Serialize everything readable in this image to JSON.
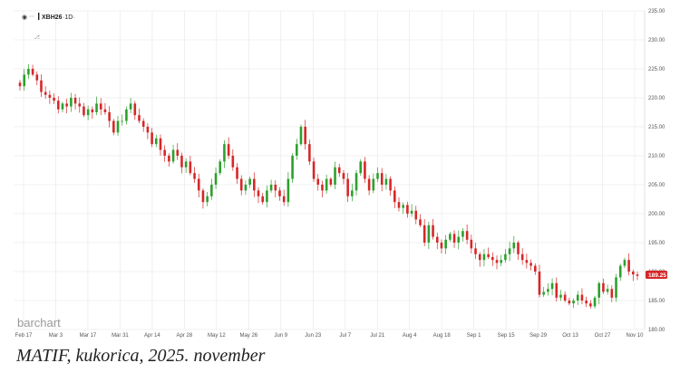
{
  "header": {
    "symbol": "XBH26",
    "interval": "1D"
  },
  "watermark": "barchart",
  "caption": "MATIF, kukorica, 2025. november",
  "colors": {
    "up": "#2ca02c",
    "down": "#d62728",
    "grid": "#e6e6e6",
    "last_price_bg": "#d62728"
  },
  "chart_data": {
    "type": "candlestick",
    "title": "",
    "xlabel": "",
    "ylabel": "",
    "ylim": [
      180,
      235
    ],
    "yticks": [
      180,
      185,
      190,
      195,
      200,
      205,
      210,
      215,
      220,
      225,
      230,
      235
    ],
    "ytick_labels": [
      "180.00",
      "185.00",
      "190.00",
      "195.00",
      "200.00",
      "205.00",
      "210.00",
      "215.00",
      "220.00",
      "225.00",
      "230.00",
      "235.00"
    ],
    "xtick_labels": [
      "Feb 17",
      "Mar 3",
      "Mar 17",
      "Mar 31",
      "Apr 14",
      "Apr 28",
      "May 12",
      "May 26",
      "Jun 9",
      "Jun 23",
      "Jul 7",
      "Jul 21",
      "Aug 4",
      "Aug 18",
      "Sep 1",
      "Sep 15",
      "Sep 29",
      "Oct 13",
      "Oct 27",
      "Nov 10"
    ],
    "last_price": "189.25",
    "grid": true,
    "closes": [
      222.0,
      224.0,
      225.0,
      224.0,
      223.0,
      221.0,
      220.5,
      220.0,
      219.5,
      218.0,
      219.0,
      218.5,
      220.0,
      219.0,
      218.5,
      217.0,
      218.0,
      217.5,
      219.0,
      218.0,
      217.5,
      216.0,
      214.0,
      216.0,
      216.0,
      218.0,
      219.0,
      217.0,
      216.0,
      215.0,
      214.0,
      212.0,
      213.0,
      211.0,
      210.0,
      209.0,
      211.0,
      210.0,
      208.0,
      209.0,
      207.0,
      206.0,
      204.0,
      202.0,
      203.0,
      205.0,
      207.0,
      209.0,
      212.0,
      210.0,
      208.0,
      206.0,
      204.0,
      205.0,
      206.0,
      204.0,
      203.0,
      202.0,
      204.0,
      205.0,
      204.0,
      203.0,
      202.0,
      206.0,
      210.0,
      212.0,
      215.0,
      212.0,
      209.0,
      206.0,
      205.0,
      204.0,
      206.0,
      205.0,
      208.0,
      207.0,
      206.0,
      203.0,
      204.0,
      207.0,
      209.0,
      206.0,
      204.0,
      206.0,
      207.0,
      205.0,
      206.0,
      204.0,
      202.0,
      201.0,
      201.5,
      200.0,
      200.5,
      199.0,
      198.0,
      195.0,
      198.0,
      196.0,
      195.0,
      194.0,
      195.5,
      196.5,
      195.0,
      196.0,
      197.0,
      195.5,
      194.0,
      193.0,
      192.0,
      193.0,
      192.5,
      192.0,
      191.5,
      192.0,
      193.0,
      194.0,
      195.0,
      193.0,
      192.0,
      191.5,
      191.0,
      190.0,
      186.0,
      186.5,
      187.0,
      188.0,
      185.5,
      186.0,
      185.0,
      184.5,
      185.0,
      186.0,
      185.0,
      184.5,
      184.0,
      185.5,
      188.0,
      186.5,
      187.0,
      185.5,
      189.0,
      191.0,
      192.0,
      190.0,
      189.5,
      189.25
    ]
  }
}
